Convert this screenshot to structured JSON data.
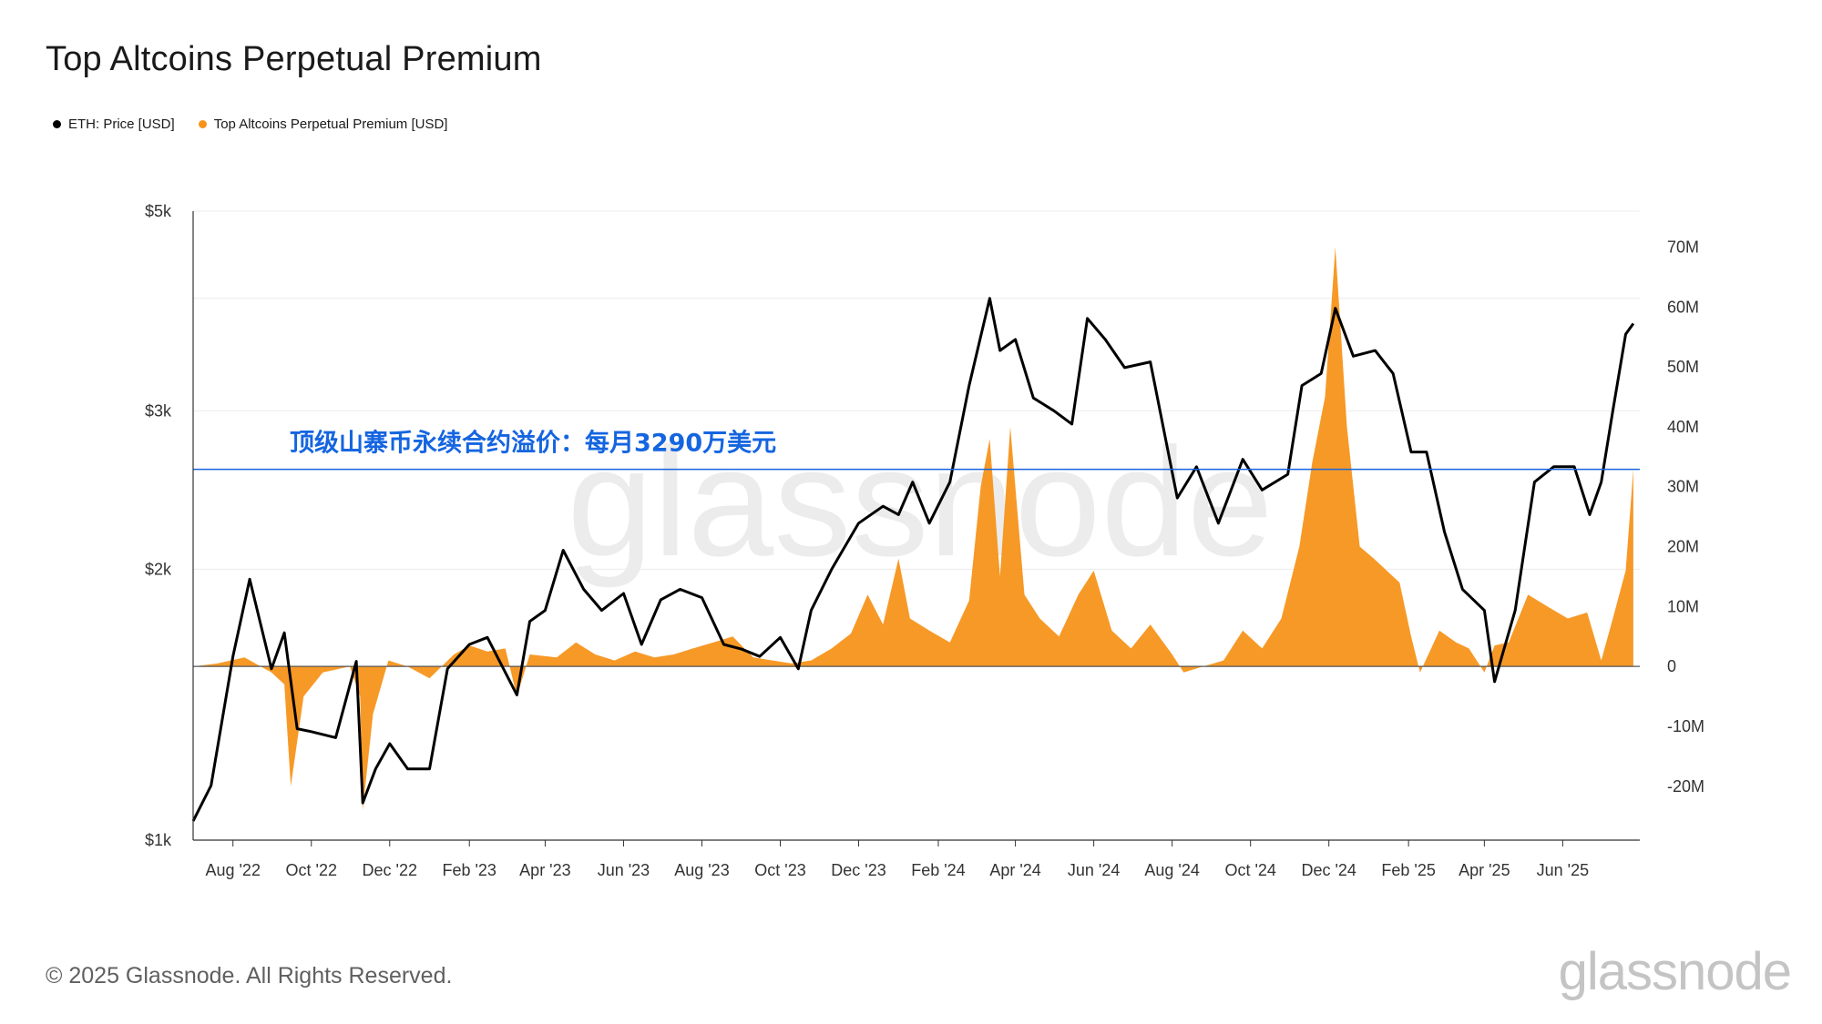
{
  "title": "Top Altcoins Perpetual Premium",
  "footer": "© 2025 Glassnode. All Rights Reserved.",
  "brand": "glassnode",
  "colors": {
    "price": "#000000",
    "premium": "#f7931a",
    "annotation": "#1565e0"
  },
  "chart_data": {
    "type": "area",
    "title": "Top Altcoins Perpetual Premium",
    "watermark": "glassnode",
    "legend": [
      {
        "label": "ETH: Price [USD]",
        "color": "#000000"
      },
      {
        "label": "Top Altcoins Perpetual Premium [USD]",
        "color": "#f7931a"
      }
    ],
    "x_ticks": [
      "Aug '22",
      "Oct '22",
      "Dec '22",
      "Feb '23",
      "Apr '23",
      "Jun '23",
      "Aug '23",
      "Oct '23",
      "Dec '23",
      "Feb '24",
      "Apr '24",
      "Jun '24",
      "Aug '24",
      "Oct '24",
      "Dec '24",
      "Feb '25",
      "Apr '25",
      "Jun '25"
    ],
    "x_range": [
      "2022-07-01",
      "2025-07-31"
    ],
    "y_left": {
      "scale": "log",
      "range": [
        1000,
        5000
      ],
      "ticks": [
        "$1k",
        "$2k",
        "$3k",
        "$5k"
      ],
      "tick_values": [
        1000,
        2000,
        3000,
        5000
      ]
    },
    "y_right": {
      "range": [
        -29000000,
        76000000
      ],
      "ticks": [
        "70M",
        "60M",
        "50M",
        "40M",
        "30M",
        "20M",
        "10M",
        "0",
        "-10M",
        "-20M"
      ],
      "tick_values": [
        70000000,
        60000000,
        50000000,
        40000000,
        30000000,
        20000000,
        10000000,
        0,
        -10000000,
        -20000000
      ]
    },
    "annotation": {
      "text": "顶级山寨币永续合约溢价：每月3290万美元",
      "value": 32900000
    },
    "series": [
      {
        "name": "ETH: Price [USD]",
        "axis": "left",
        "dates": [
          "2022-07-01",
          "2022-07-15",
          "2022-08-01",
          "2022-08-14",
          "2022-08-31",
          "2022-09-10",
          "2022-09-20",
          "2022-10-01",
          "2022-10-20",
          "2022-11-05",
          "2022-11-10",
          "2022-11-20",
          "2022-12-01",
          "2022-12-15",
          "2023-01-01",
          "2023-01-15",
          "2023-02-01",
          "2023-02-15",
          "2023-03-10",
          "2023-03-20",
          "2023-04-01",
          "2023-04-15",
          "2023-05-01",
          "2023-05-15",
          "2023-06-01",
          "2023-06-15",
          "2023-06-30",
          "2023-07-15",
          "2023-08-01",
          "2023-08-18",
          "2023-09-01",
          "2023-09-15",
          "2023-10-01",
          "2023-10-15",
          "2023-10-25",
          "2023-11-10",
          "2023-12-01",
          "2023-12-20",
          "2024-01-01",
          "2024-01-12",
          "2024-01-25",
          "2024-02-10",
          "2024-02-25",
          "2024-03-12",
          "2024-03-20",
          "2024-04-01",
          "2024-04-15",
          "2024-05-01",
          "2024-05-15",
          "2024-05-27",
          "2024-06-10",
          "2024-06-25",
          "2024-07-15",
          "2024-08-05",
          "2024-08-20",
          "2024-09-06",
          "2024-09-25",
          "2024-10-10",
          "2024-10-30",
          "2024-11-10",
          "2024-11-25",
          "2024-12-06",
          "2024-12-20",
          "2025-01-06",
          "2025-01-20",
          "2025-02-03",
          "2025-02-15",
          "2025-03-01",
          "2025-03-15",
          "2025-04-01",
          "2025-04-09",
          "2025-04-25",
          "2025-05-10",
          "2025-05-25",
          "2025-06-10",
          "2025-06-22",
          "2025-07-01",
          "2025-07-10",
          "2025-07-20",
          "2025-07-26"
        ],
        "values": [
          1050,
          1150,
          1600,
          1950,
          1550,
          1700,
          1330,
          1320,
          1300,
          1580,
          1100,
          1200,
          1280,
          1200,
          1200,
          1550,
          1650,
          1680,
          1450,
          1750,
          1800,
          2100,
          1900,
          1800,
          1880,
          1650,
          1850,
          1900,
          1860,
          1650,
          1630,
          1600,
          1680,
          1550,
          1800,
          2000,
          2250,
          2350,
          2300,
          2500,
          2250,
          2500,
          3200,
          4000,
          3500,
          3600,
          3100,
          3000,
          2900,
          3800,
          3600,
          3350,
          3400,
          2400,
          2600,
          2250,
          2650,
          2450,
          2550,
          3200,
          3300,
          3900,
          3450,
          3500,
          3300,
          2700,
          2700,
          2200,
          1900,
          1800,
          1500,
          1800,
          2500,
          2600,
          2600,
          2300,
          2500,
          3000,
          3650,
          3750
        ]
      },
      {
        "name": "Top Altcoins Perpetual Premium [USD]",
        "axis": "right",
        "dates": [
          "2022-07-01",
          "2022-07-20",
          "2022-08-10",
          "2022-08-31",
          "2022-09-10",
          "2022-09-15",
          "2022-09-25",
          "2022-10-10",
          "2022-10-31",
          "2022-11-08",
          "2022-11-10",
          "2022-11-18",
          "2022-11-30",
          "2022-12-15",
          "2023-01-01",
          "2023-01-20",
          "2023-02-01",
          "2023-02-15",
          "2023-03-01",
          "2023-03-10",
          "2023-03-20",
          "2023-04-10",
          "2023-04-25",
          "2023-05-10",
          "2023-05-25",
          "2023-06-10",
          "2023-06-25",
          "2023-07-10",
          "2023-07-25",
          "2023-08-10",
          "2023-08-25",
          "2023-09-10",
          "2023-09-25",
          "2023-10-10",
          "2023-10-25",
          "2023-11-10",
          "2023-11-25",
          "2023-12-08",
          "2023-12-20",
          "2024-01-01",
          "2024-01-10",
          "2024-01-25",
          "2024-02-10",
          "2024-02-25",
          "2024-03-05",
          "2024-03-12",
          "2024-03-20",
          "2024-03-28",
          "2024-04-08",
          "2024-04-20",
          "2024-05-05",
          "2024-05-20",
          "2024-06-01",
          "2024-06-15",
          "2024-06-30",
          "2024-07-15",
          "2024-08-01",
          "2024-08-10",
          "2024-08-25",
          "2024-09-10",
          "2024-09-25",
          "2024-10-10",
          "2024-10-25",
          "2024-11-08",
          "2024-11-18",
          "2024-11-28",
          "2024-12-06",
          "2024-12-15",
          "2024-12-25",
          "2025-01-05",
          "2025-01-15",
          "2025-01-25",
          "2025-02-03",
          "2025-02-10",
          "2025-02-25",
          "2025-03-10",
          "2025-03-20",
          "2025-04-01",
          "2025-04-09",
          "2025-04-20",
          "2025-05-05",
          "2025-05-20",
          "2025-06-05",
          "2025-06-20",
          "2025-07-01",
          "2025-07-10",
          "2025-07-20",
          "2025-07-26"
        ],
        "values": [
          0,
          500000,
          1500000,
          -1000000,
          -3000000,
          -20000000,
          -5000000,
          -1000000,
          0,
          -5000000,
          -24000000,
          -8000000,
          1000000,
          0,
          -2000000,
          2000000,
          3500000,
          2500000,
          3000000,
          -5000000,
          2000000,
          1500000,
          4000000,
          2000000,
          1000000,
          2500000,
          1500000,
          2000000,
          3000000,
          4000000,
          5000000,
          1500000,
          1000000,
          500000,
          1000000,
          3000000,
          5500000,
          12000000,
          7000000,
          18000000,
          8000000,
          6000000,
          4000000,
          11000000,
          30000000,
          38000000,
          15000000,
          40000000,
          12000000,
          8000000,
          5000000,
          12000000,
          16000000,
          6000000,
          3000000,
          7000000,
          2000000,
          -1000000,
          0,
          1000000,
          6000000,
          3000000,
          8000000,
          20000000,
          34000000,
          45000000,
          70000000,
          40000000,
          20000000,
          18000000,
          16000000,
          14000000,
          5000000,
          -1000000,
          6000000,
          4000000,
          3000000,
          -1000000,
          3500000,
          4000000,
          12000000,
          10000000,
          8000000,
          9000000,
          1000000,
          8000000,
          16000000,
          32900000
        ]
      }
    ]
  }
}
